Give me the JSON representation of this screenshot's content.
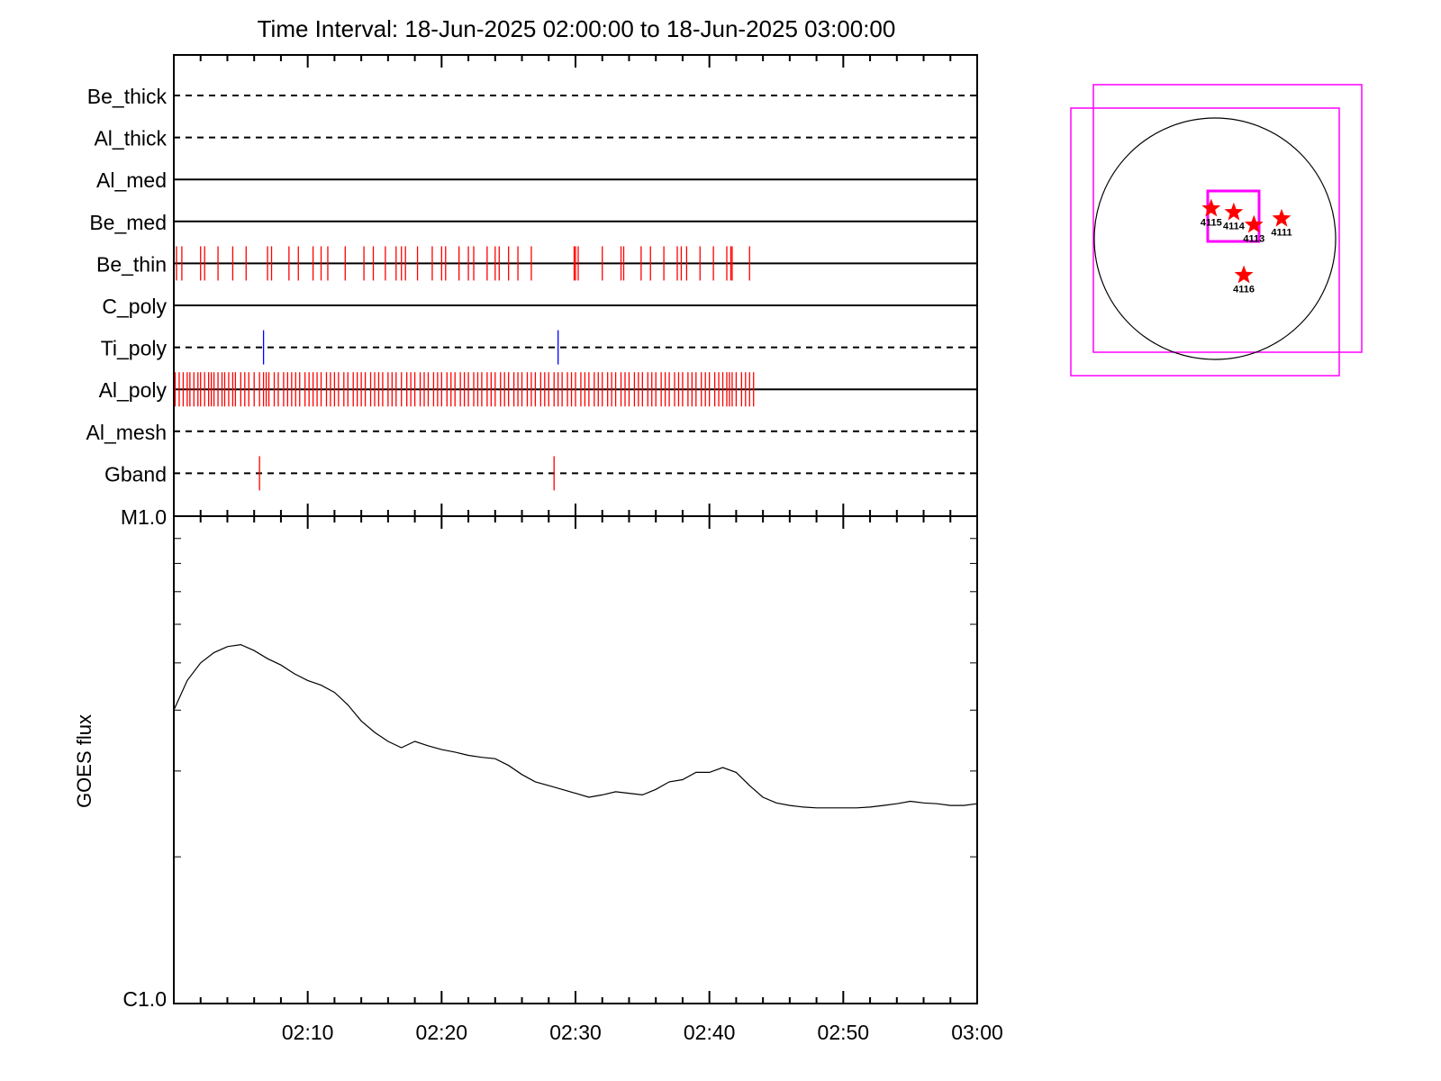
{
  "title": "Time Interval: 18-Jun-2025 02:00:00 to 18-Jun-2025 03:00:00",
  "colors": {
    "axis": "#000000",
    "exposure_red": "#ff0000",
    "exposure_blue": "#0000ff",
    "fov_box": "#ff00ff",
    "star": "#ff0000",
    "limb": "#000000"
  },
  "chart_data": [
    {
      "type": "timeline",
      "title": "Time Interval: 18-Jun-2025 02:00:00 to 18-Jun-2025 03:00:00",
      "x_range": [
        "02:00",
        "03:00"
      ],
      "rows": [
        {
          "name": "Be_thick",
          "line": "dashed",
          "color": "#ff0000",
          "events": []
        },
        {
          "name": "Al_thick",
          "line": "dashed",
          "color": "#ff0000",
          "events": []
        },
        {
          "name": "Al_med",
          "line": "solid",
          "color": "#ff0000",
          "events": []
        },
        {
          "name": "Be_med",
          "line": "solid",
          "color": "#ff0000",
          "events": []
        },
        {
          "name": "Be_thin",
          "line": "solid",
          "color": "#ff0000",
          "events": [
            0.2,
            0.6,
            2.0,
            2.3,
            3.3,
            4.4,
            5.4,
            7.0,
            7.3,
            8.6,
            9.3,
            10.4,
            11.0,
            11.5,
            12.8,
            14.2,
            14.9,
            15.8,
            16.6,
            17.0,
            17.3,
            18.2,
            19.3,
            20.0,
            20.3,
            21.3,
            22.0,
            22.4,
            23.4,
            24.0,
            24.3,
            25.0,
            25.7,
            26.7,
            29.9,
            30.0,
            30.2,
            32.0,
            33.4,
            33.6,
            34.9,
            35.6,
            36.6,
            37.6,
            37.9,
            38.3,
            39.3,
            40.3,
            41.3,
            41.6,
            41.7,
            43.0
          ]
        },
        {
          "name": "C_poly",
          "line": "solid",
          "color": "#ff0000",
          "events": []
        },
        {
          "name": "Ti_poly",
          "line": "dashed",
          "color": "#0000ff",
          "events": [
            6.7,
            28.7
          ]
        },
        {
          "name": "Al_poly",
          "line": "solid",
          "color": "#ff0000",
          "events": [
            0.1,
            0.4,
            0.7,
            1.0,
            1.2,
            1.5,
            1.8,
            2.0,
            2.3,
            2.6,
            2.8,
            3.0,
            3.3,
            3.6,
            3.8,
            4.1,
            4.4,
            4.6,
            5.0,
            5.3,
            5.6,
            6.0,
            6.4,
            6.7,
            6.9,
            7.1,
            7.5,
            7.8,
            8.2,
            8.5,
            8.8,
            9.1,
            9.4,
            9.8,
            10.1,
            10.4,
            10.7,
            11.0,
            11.4,
            11.7,
            12.0,
            12.3,
            12.7,
            13.0,
            13.4,
            13.7,
            14.0,
            14.3,
            14.7,
            15.0,
            15.3,
            15.6,
            16.0,
            16.3,
            16.6,
            17.0,
            17.4,
            17.7,
            18.0,
            18.4,
            18.7,
            19.0,
            19.4,
            19.7,
            20.0,
            20.4,
            20.7,
            21.0,
            21.4,
            21.7,
            22.0,
            22.4,
            22.7,
            23.0,
            23.4,
            23.7,
            24.0,
            24.4,
            24.7,
            25.0,
            25.4,
            25.7,
            26.0,
            26.4,
            26.7,
            27.0,
            27.4,
            27.7,
            28.0,
            28.4,
            28.7,
            29.0,
            29.4,
            29.7,
            30.0,
            30.4,
            30.7,
            31.0,
            31.4,
            31.7,
            32.0,
            32.4,
            32.7,
            33.0,
            33.4,
            33.7,
            34.0,
            34.4,
            34.7,
            35.0,
            35.4,
            35.7,
            36.0,
            36.4,
            36.7,
            37.0,
            37.4,
            37.7,
            38.0,
            38.4,
            38.7,
            39.0,
            39.4,
            39.7,
            40.0,
            40.4,
            40.7,
            41.0,
            41.3,
            41.5,
            41.7,
            42.0,
            42.4,
            42.7,
            43.0,
            43.3
          ]
        },
        {
          "name": "Al_mesh",
          "line": "dashed",
          "color": "#ff0000",
          "events": []
        },
        {
          "name": "Gband",
          "line": "dashed",
          "color": "#ff0000",
          "events": [
            6.4,
            28.4
          ]
        }
      ]
    },
    {
      "type": "line",
      "ylabel": "GOES flux",
      "x_range": [
        "02:00",
        "03:00"
      ],
      "x_tick_labels": [
        "02:10",
        "02:20",
        "02:30",
        "02:40",
        "02:50",
        "03:00"
      ],
      "y_scale": "log",
      "y_range": [
        1e-06,
        1e-05
      ],
      "y_tick_labels": [
        "C1.0",
        "M1.0"
      ],
      "series": [
        {
          "x_minutes": [
            0,
            1,
            2,
            3,
            4,
            5,
            6,
            7,
            8,
            9,
            10,
            11,
            12,
            13,
            14,
            15,
            16,
            17,
            18,
            19,
            20,
            21,
            22,
            23,
            24,
            25,
            26,
            27,
            28,
            29,
            30,
            31,
            32,
            33,
            34,
            35,
            36,
            37,
            38,
            39,
            40,
            41,
            42,
            43,
            44,
            45,
            46,
            47,
            48,
            49,
            50,
            51,
            52,
            53,
            54,
            55,
            56,
            57,
            58,
            59,
            60
          ],
          "y": [
            4e-06,
            4.6e-06,
            5e-06,
            5.25e-06,
            5.4e-06,
            5.45e-06,
            5.3e-06,
            5.1e-06,
            4.95e-06,
            4.75e-06,
            4.6e-06,
            4.5e-06,
            4.35e-06,
            4.1e-06,
            3.8e-06,
            3.6e-06,
            3.45e-06,
            3.35e-06,
            3.45e-06,
            3.38e-06,
            3.32e-06,
            3.28e-06,
            3.23e-06,
            3.2e-06,
            3.18e-06,
            3.08e-06,
            2.95e-06,
            2.85e-06,
            2.8e-06,
            2.75e-06,
            2.7e-06,
            2.65e-06,
            2.68e-06,
            2.72e-06,
            2.7e-06,
            2.68e-06,
            2.75e-06,
            2.85e-06,
            2.88e-06,
            2.98e-06,
            2.98e-06,
            3.05e-06,
            2.98e-06,
            2.8e-06,
            2.65e-06,
            2.58e-06,
            2.55e-06,
            2.53e-06,
            2.52e-06,
            2.52e-06,
            2.52e-06,
            2.52e-06,
            2.53e-06,
            2.55e-06,
            2.57e-06,
            2.6e-06,
            2.58e-06,
            2.57e-06,
            2.55e-06,
            2.55e-06,
            2.57e-06
          ]
        }
      ]
    },
    {
      "type": "scatter",
      "description_kind": "solar-disk",
      "points": [
        {
          "label": "4115",
          "hpx": -30,
          "hpy": 240
        },
        {
          "label": "4114",
          "hpx": 150,
          "hpy": 210
        },
        {
          "label": "4113",
          "hpx": 310,
          "hpy": 110
        },
        {
          "label": "4111",
          "hpx": 530,
          "hpy": 160
        },
        {
          "label": "4116",
          "hpx": 230,
          "hpy": -290
        }
      ]
    }
  ]
}
